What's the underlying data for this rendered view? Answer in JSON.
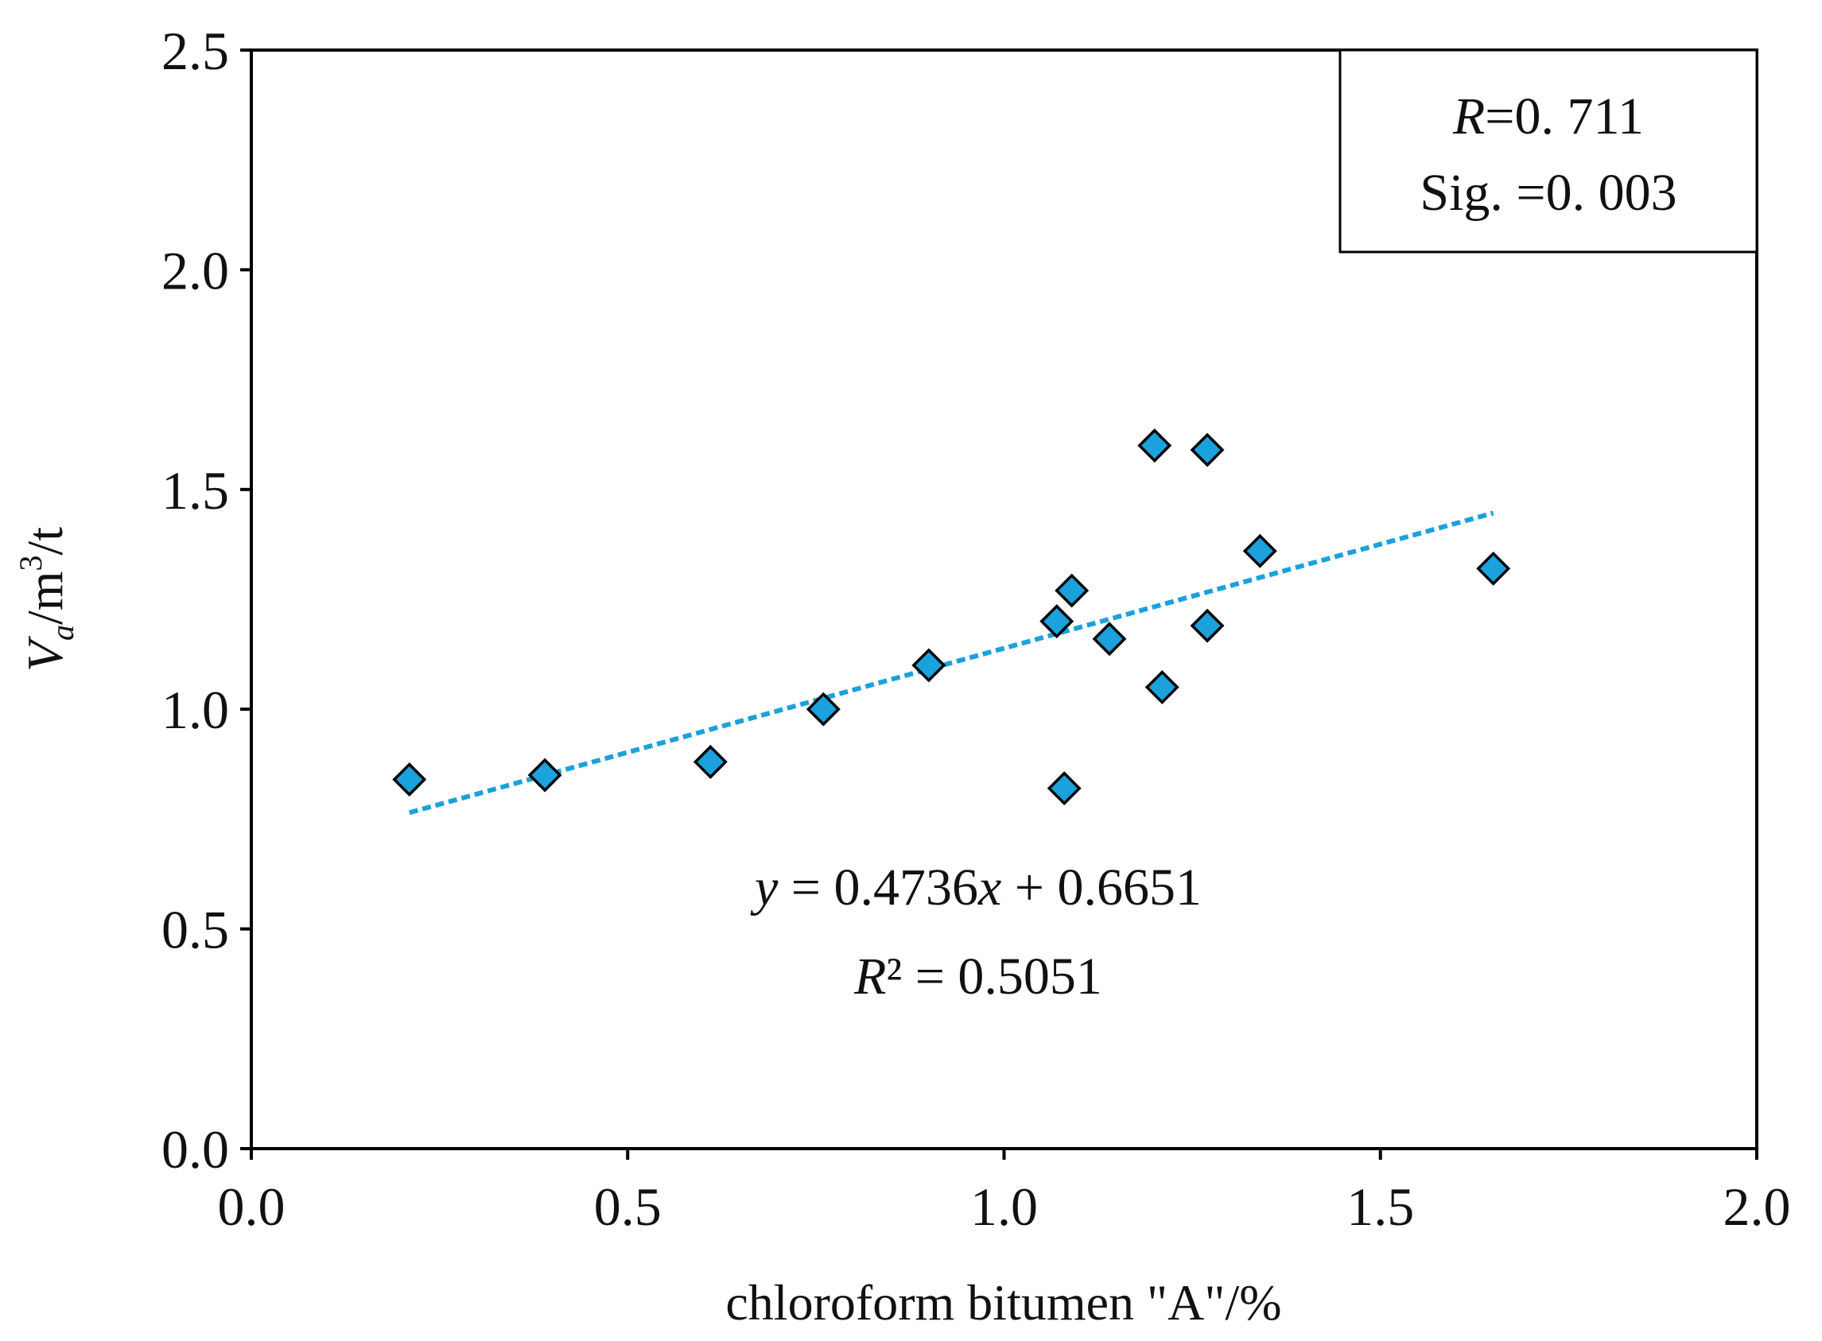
{
  "chart_data": {
    "type": "scatter",
    "xlabel": "chloroform bitumen \"A\"/%",
    "ylabel": {
      "main": "V",
      "sub": "a",
      "unit_prefix": "/m",
      "sup": "3",
      "unit_suffix": "/t"
    },
    "xlim": [
      0.0,
      2.0
    ],
    "ylim": [
      0.0,
      2.5
    ],
    "x_ticks": [
      0.0,
      0.5,
      1.0,
      1.5,
      2.0
    ],
    "y_ticks": [
      0.0,
      0.5,
      1.0,
      1.5,
      2.0,
      2.5
    ],
    "x_tick_labels": [
      "0.0",
      "0.5",
      "1.0",
      "1.5",
      "2.0"
    ],
    "y_tick_labels": [
      "0.0",
      "0.5",
      "1.0",
      "1.5",
      "2.0",
      "2.5"
    ],
    "grid": false,
    "marker_color": "#1ba1dc",
    "trendline_color": "#1ba1dc",
    "points": [
      {
        "x": 0.21,
        "y": 0.84
      },
      {
        "x": 0.39,
        "y": 0.85
      },
      {
        "x": 0.61,
        "y": 0.88
      },
      {
        "x": 0.76,
        "y": 1.0
      },
      {
        "x": 0.9,
        "y": 1.1
      },
      {
        "x": 1.07,
        "y": 1.2
      },
      {
        "x": 1.09,
        "y": 1.27
      },
      {
        "x": 1.08,
        "y": 0.82
      },
      {
        "x": 1.14,
        "y": 1.16
      },
      {
        "x": 1.2,
        "y": 1.6
      },
      {
        "x": 1.21,
        "y": 1.05
      },
      {
        "x": 1.27,
        "y": 1.19
      },
      {
        "x": 1.27,
        "y": 1.59
      },
      {
        "x": 1.34,
        "y": 1.36
      },
      {
        "x": 1.65,
        "y": 1.32
      }
    ],
    "trendline": {
      "slope": 0.4736,
      "intercept": 0.6651,
      "x_range": [
        0.21,
        1.65
      ]
    },
    "annotations": {
      "equation": {
        "var_y": "y",
        "mid": " = 0.4736",
        "var_x": "x",
        "tail": " + 0.6651"
      },
      "r_squared": {
        "var": "R",
        "tail": "² = 0.5051"
      },
      "stats_box": {
        "r_var": "R",
        "r_value": "=0. 711",
        "sig": "Sig. =0. 003"
      }
    }
  }
}
